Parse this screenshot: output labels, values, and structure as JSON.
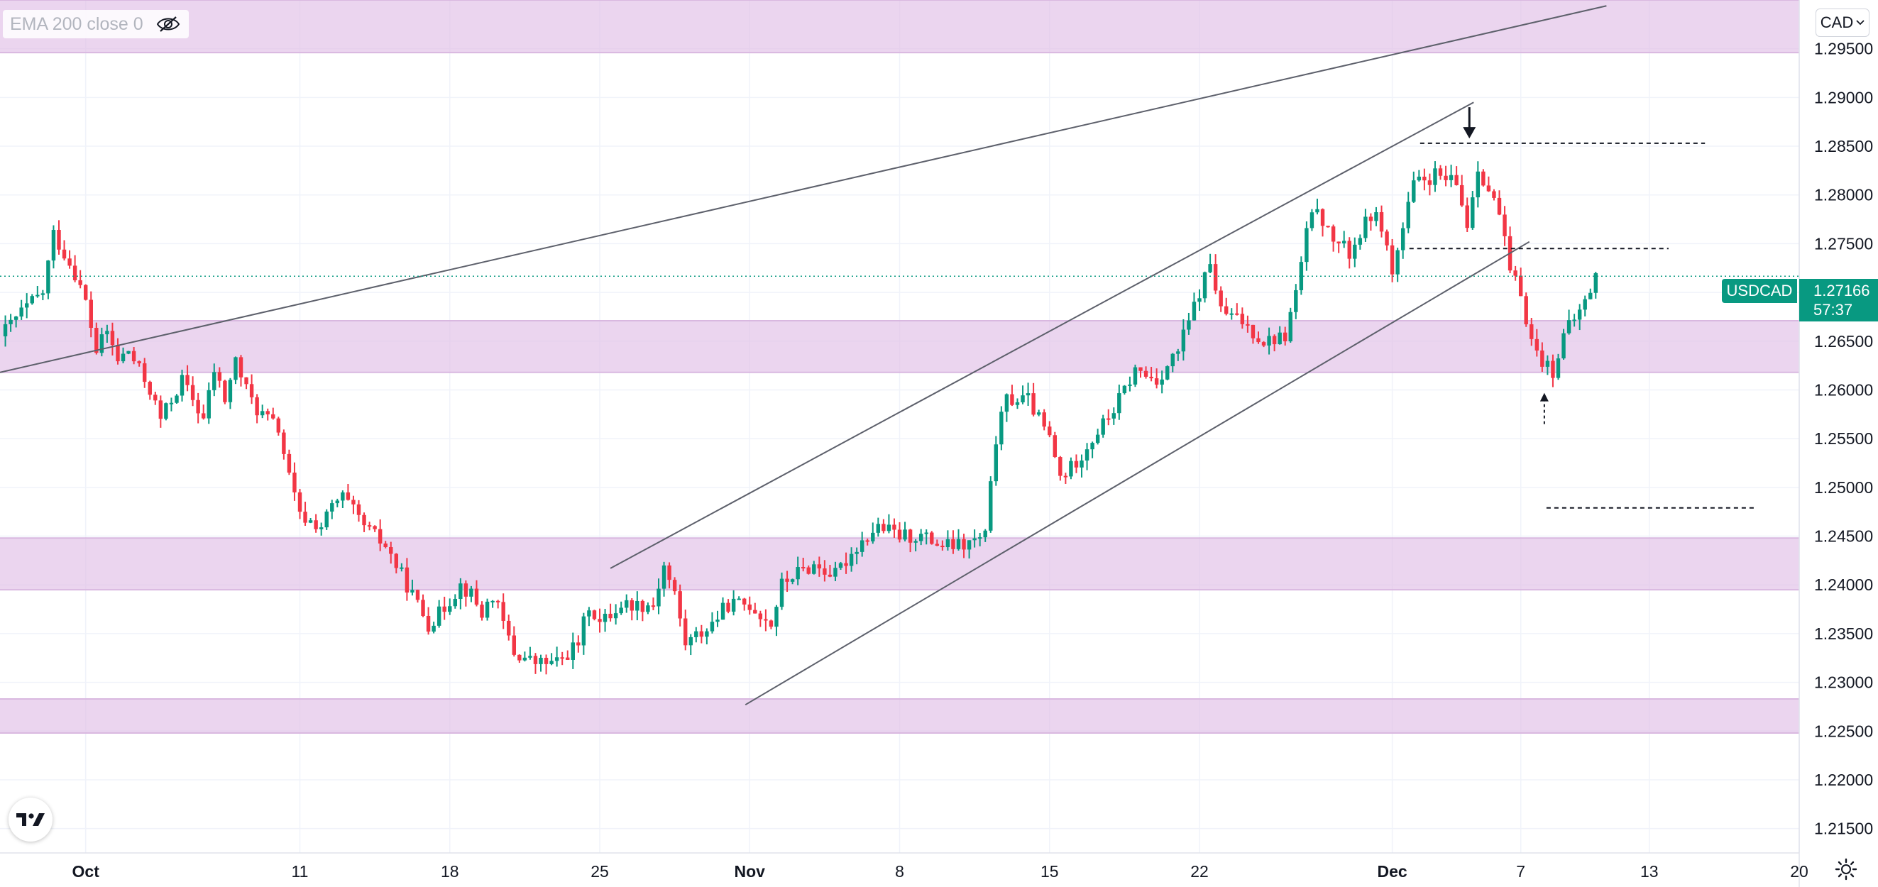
{
  "legend": {
    "indicator": "EMA 200 close 0",
    "visibility_icon": "eye-off-icon"
  },
  "currency_button": {
    "label": "CAD",
    "icon": "chevron-down-icon"
  },
  "price_label": {
    "symbol": "USDCAD",
    "price": "1.27166",
    "countdown": "57:37"
  },
  "colors": {
    "up": "#089981",
    "down": "#f23645",
    "zone": "#e1bee7",
    "line": "#5d606b",
    "grid": "#f0f3fa"
  },
  "chart_data": {
    "type": "candlestick",
    "symbol": "USDCAD",
    "y_axis": {
      "range": [
        1.2125,
        1.3
      ],
      "tick_labels": [
        "1.29500",
        "1.29000",
        "1.28500",
        "1.28000",
        "1.27500",
        "1.27000",
        "1.26500",
        "1.26000",
        "1.25500",
        "1.25000",
        "1.24500",
        "1.24000",
        "1.23500",
        "1.23000",
        "1.22500",
        "1.22000",
        "1.21500"
      ]
    },
    "x_axis": {
      "day_range": [
        -4,
        80
      ],
      "ticks": [
        {
          "day": 0,
          "label": "Oct"
        },
        {
          "day": 10,
          "label": "11"
        },
        {
          "day": 17,
          "label": "18"
        },
        {
          "day": 24,
          "label": "25"
        },
        {
          "day": 31,
          "label": "Nov"
        },
        {
          "day": 38,
          "label": "8"
        },
        {
          "day": 45,
          "label": "15"
        },
        {
          "day": 52,
          "label": "22"
        },
        {
          "day": 61,
          "label": "Dec"
        },
        {
          "day": 67,
          "label": "7"
        },
        {
          "day": 73,
          "label": "13"
        },
        {
          "day": 80,
          "label": "20"
        }
      ]
    },
    "last_price": 1.27166,
    "zones": [
      {
        "from": 1.2946,
        "to": 1.3
      },
      {
        "from": 1.2618,
        "to": 1.2671
      },
      {
        "from": 1.2395,
        "to": 1.2448
      },
      {
        "from": 1.2248,
        "to": 1.2283
      }
    ],
    "trendlines": [
      {
        "x1": -4.0,
        "y1": 1.2618,
        "x2": 71.0,
        "y2": 1.2994
      },
      {
        "x1": 24.5,
        "y1": 1.2417,
        "x2": 64.8,
        "y2": 1.2895
      },
      {
        "x1": 30.8,
        "y1": 1.2277,
        "x2": 67.4,
        "y2": 1.2752
      }
    ],
    "levels": [
      {
        "price": 1.2853,
        "from": 62.3,
        "to": 75.6
      },
      {
        "price": 1.2745,
        "from": 61.8,
        "to": 73.9
      },
      {
        "price": 1.2479,
        "from": 68.2,
        "to": 78.0
      }
    ],
    "annotations": [
      {
        "type": "arrow-down",
        "day": 64.6,
        "from": 1.289,
        "to": 1.2858
      },
      {
        "type": "arrow-up-dashed",
        "day": 68.1,
        "from": 1.2565,
        "to": 1.2597
      }
    ],
    "anchors": [
      [
        -4.0,
        1.2655
      ],
      [
        -3.0,
        1.268
      ],
      [
        -2.0,
        1.27
      ],
      [
        -1.5,
        1.276
      ],
      [
        -0.5,
        1.272
      ],
      [
        0.0,
        1.269
      ],
      [
        0.5,
        1.264
      ],
      [
        1.0,
        1.266
      ],
      [
        1.5,
        1.263
      ],
      [
        2.0,
        1.264
      ],
      [
        3.0,
        1.26
      ],
      [
        3.5,
        1.257
      ],
      [
        4.5,
        1.261
      ],
      [
        5.0,
        1.259
      ],
      [
        5.5,
        1.257
      ],
      [
        6.0,
        1.262
      ],
      [
        6.5,
        1.259
      ],
      [
        7.0,
        1.263
      ],
      [
        7.5,
        1.26
      ],
      [
        8.0,
        1.258
      ],
      [
        9.0,
        1.256
      ],
      [
        9.5,
        1.251
      ],
      [
        10.0,
        1.247
      ],
      [
        11.0,
        1.246
      ],
      [
        11.5,
        1.248
      ],
      [
        12.0,
        1.249
      ],
      [
        13.0,
        1.246
      ],
      [
        14.0,
        1.244
      ],
      [
        15.0,
        1.24
      ],
      [
        16.0,
        1.236
      ],
      [
        16.5,
        1.237
      ],
      [
        17.5,
        1.24
      ],
      [
        18.0,
        1.239
      ],
      [
        18.5,
        1.237
      ],
      [
        19.0,
        1.239
      ],
      [
        20.0,
        1.233
      ],
      [
        21.0,
        1.232
      ],
      [
        22.0,
        1.232
      ],
      [
        23.0,
        1.234
      ],
      [
        23.5,
        1.238
      ],
      [
        24.0,
        1.236
      ],
      [
        25.0,
        1.238
      ],
      [
        26.0,
        1.238
      ],
      [
        26.5,
        1.238
      ],
      [
        27.0,
        1.242
      ],
      [
        27.5,
        1.239
      ],
      [
        28.0,
        1.234
      ],
      [
        29.0,
        1.2355
      ],
      [
        30.0,
        1.238
      ],
      [
        31.0,
        1.238
      ],
      [
        32.0,
        1.236
      ],
      [
        32.5,
        1.24
      ],
      [
        33.0,
        1.241
      ],
      [
        34.0,
        1.242
      ],
      [
        35.0,
        1.241
      ],
      [
        36.0,
        1.244
      ],
      [
        37.0,
        1.246
      ],
      [
        38.0,
        1.245
      ],
      [
        39.0,
        1.245
      ],
      [
        40.0,
        1.244
      ],
      [
        41.0,
        1.244
      ],
      [
        42.0,
        1.245
      ],
      [
        42.5,
        1.255
      ],
      [
        43.0,
        1.259
      ],
      [
        44.0,
        1.259
      ],
      [
        45.0,
        1.255
      ],
      [
        45.5,
        1.251
      ],
      [
        46.0,
        1.252
      ],
      [
        47.0,
        1.255
      ],
      [
        48.0,
        1.258
      ],
      [
        49.0,
        1.262
      ],
      [
        50.0,
        1.261
      ],
      [
        51.0,
        1.264
      ],
      [
        52.0,
        1.27
      ],
      [
        52.5,
        1.273
      ],
      [
        53.0,
        1.268
      ],
      [
        54.0,
        1.267
      ],
      [
        55.0,
        1.265
      ],
      [
        56.0,
        1.2655
      ],
      [
        56.5,
        1.27
      ],
      [
        57.0,
        1.276
      ],
      [
        57.5,
        1.279
      ],
      [
        58.0,
        1.276
      ],
      [
        59.0,
        1.274
      ],
      [
        60.0,
        1.278
      ],
      [
        60.5,
        1.277
      ],
      [
        61.0,
        1.272
      ],
      [
        62.0,
        1.281
      ],
      [
        63.0,
        1.282
      ],
      [
        64.0,
        1.281
      ],
      [
        64.5,
        1.277
      ],
      [
        65.0,
        1.283
      ],
      [
        66.0,
        1.278
      ],
      [
        66.5,
        1.272
      ],
      [
        67.0,
        1.27
      ],
      [
        67.5,
        1.265
      ],
      [
        68.0,
        1.263
      ],
      [
        68.5,
        1.262
      ],
      [
        69.0,
        1.2655
      ],
      [
        70.0,
        1.269
      ],
      [
        70.5,
        1.2717
      ]
    ]
  }
}
